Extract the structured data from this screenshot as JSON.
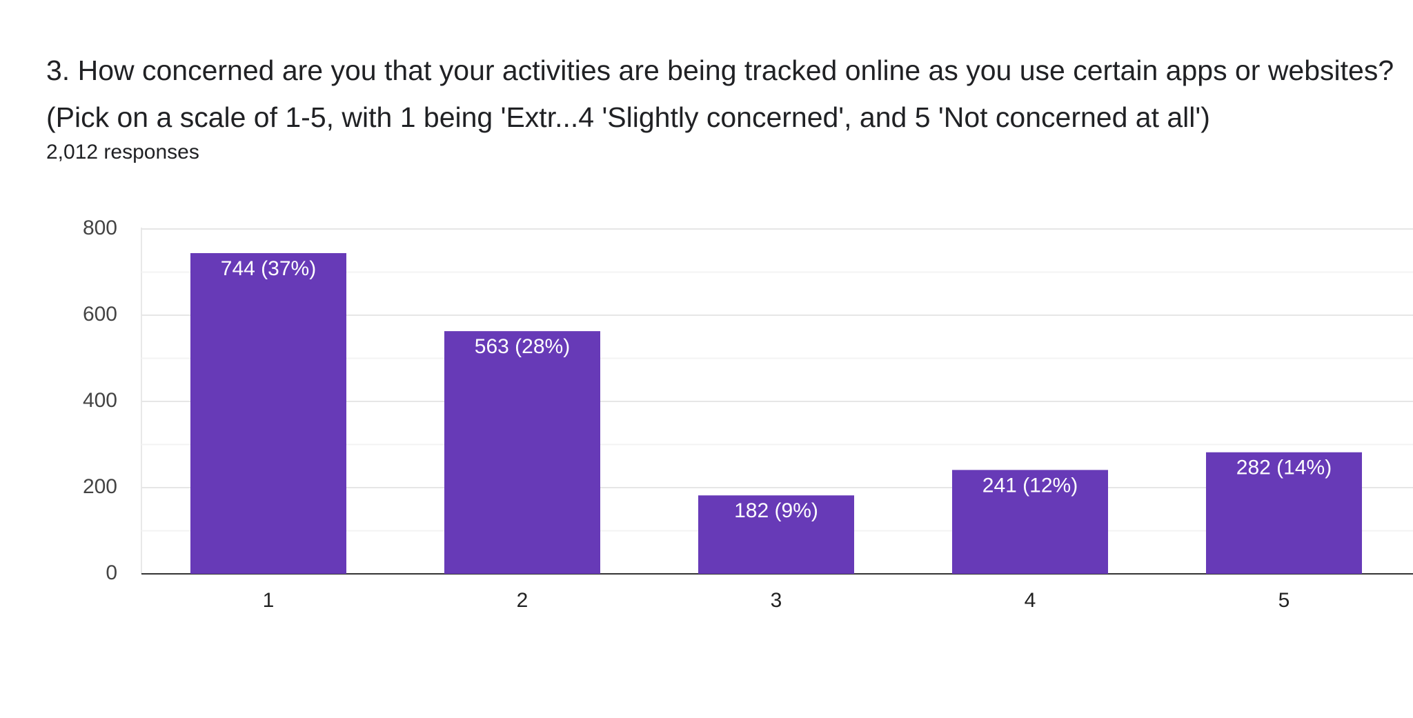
{
  "chart_data": {
    "type": "bar",
    "title": "3. How concerned are you that your activities are being tracked online as you use certain apps or websites? (Pick on a scale of 1-5, with 1 being 'Extr...4 'Slightly concerned', and 5 'Not concerned at all')",
    "subtitle": "2,012 responses",
    "categories": [
      "1",
      "2",
      "3",
      "4",
      "5"
    ],
    "values": [
      744,
      563,
      182,
      241,
      282
    ],
    "value_labels": [
      "744 (37%)",
      "563 (28%)",
      "182 (9%)",
      "241 (12%)",
      "282 (14%)"
    ],
    "color": "#673ab7",
    "ylim": [
      0,
      800
    ],
    "yticks": [
      0,
      200,
      400,
      600,
      800
    ],
    "minor_yticks": [
      100,
      300,
      500,
      700
    ],
    "grid": true
  }
}
